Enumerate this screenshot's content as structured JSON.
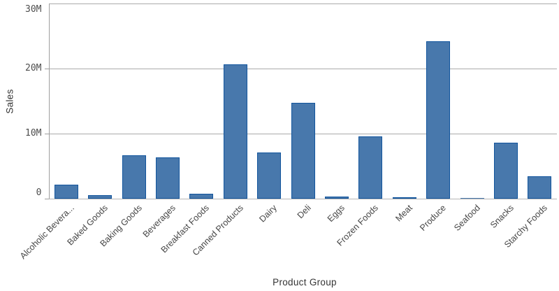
{
  "chart_data": {
    "type": "bar",
    "title": "",
    "xlabel": "Product Group",
    "ylabel": "Sales",
    "categories": [
      "Alcoholic Bevera...",
      "Baked Goods",
      "Baking Goods",
      "Beverages",
      "Breakfast Foods",
      "Canned Products",
      "Dairy",
      "Deli",
      "Eggs",
      "Frozen Foods",
      "Meat",
      "Produce",
      "Seafood",
      "Snacks",
      "Starchy Foods"
    ],
    "values": [
      2.2,
      0.5,
      6.7,
      6.3,
      0.7,
      20.6,
      7.1,
      14.7,
      0.3,
      9.5,
      0.2,
      24.2,
      0.1,
      8.6,
      3.4
    ],
    "unit": "M",
    "ylim": [
      0,
      30
    ],
    "y_ticks": [
      {
        "label": "0",
        "value": 0
      },
      {
        "label": "10M",
        "value": 10
      },
      {
        "label": "20M",
        "value": 20
      },
      {
        "label": "30M",
        "value": 30
      }
    ],
    "grid": true,
    "legend": false,
    "colors": {
      "bar_fill": "#4878ac",
      "bar_border": "#12559d",
      "gridline": "#ababab",
      "axis_line": "#9e9e9e",
      "category_text": "#464646",
      "tick_text": "#4d4d4d",
      "title_text": "#333333"
    }
  }
}
